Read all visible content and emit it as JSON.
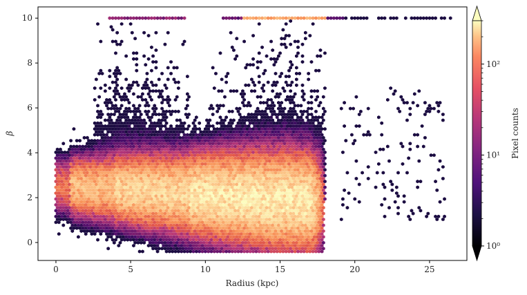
{
  "chart_data": {
    "type": "heatmap",
    "subtype": "hexbin",
    "xlabel": "Radius (kpc)",
    "ylabel": "β",
    "xlim": [
      -1.2,
      27.5
    ],
    "ylim": [
      -0.8,
      10.5
    ],
    "xticks": [
      0,
      5,
      10,
      15,
      20,
      25
    ],
    "yticks": [
      0,
      2,
      4,
      6,
      8,
      10
    ],
    "xtick_labels": [
      "0",
      "5",
      "10",
      "15",
      "20",
      "25"
    ],
    "ytick_labels": [
      "0",
      "2",
      "4",
      "6",
      "8",
      "10"
    ],
    "grid": false,
    "colormap": "magma",
    "colorbar": {
      "label": "Pixel counts",
      "scale": "log",
      "range": [
        1,
        300
      ],
      "ticks": [
        1,
        10,
        100
      ],
      "tick_labels": [
        "10⁰",
        "10¹",
        "10²"
      ],
      "extend": "both"
    },
    "colors": [
      "#1b0c41",
      "#4a0c6b",
      "#7c1d6f",
      "#b73779",
      "#e45a49",
      "#f8945a",
      "#fcc88a",
      "#fcfdbf"
    ],
    "density_regions": [
      {
        "description": "main band",
        "x_range": [
          0,
          17.5
        ],
        "beta_center": 2.1,
        "peak_counts": 200
      },
      {
        "description": "upper spread",
        "x_range": [
          3,
          19
        ],
        "beta_range": [
          4,
          10
        ],
        "peak_counts": 5
      },
      {
        "description": "saturated row at beta=10",
        "x_range": [
          3,
          26.5
        ],
        "beta": 10,
        "peak_counts": 100
      },
      {
        "description": "outer sparse points",
        "x_range": [
          19,
          26
        ],
        "beta_range": [
          1,
          7
        ],
        "peak_counts": 1
      }
    ]
  }
}
